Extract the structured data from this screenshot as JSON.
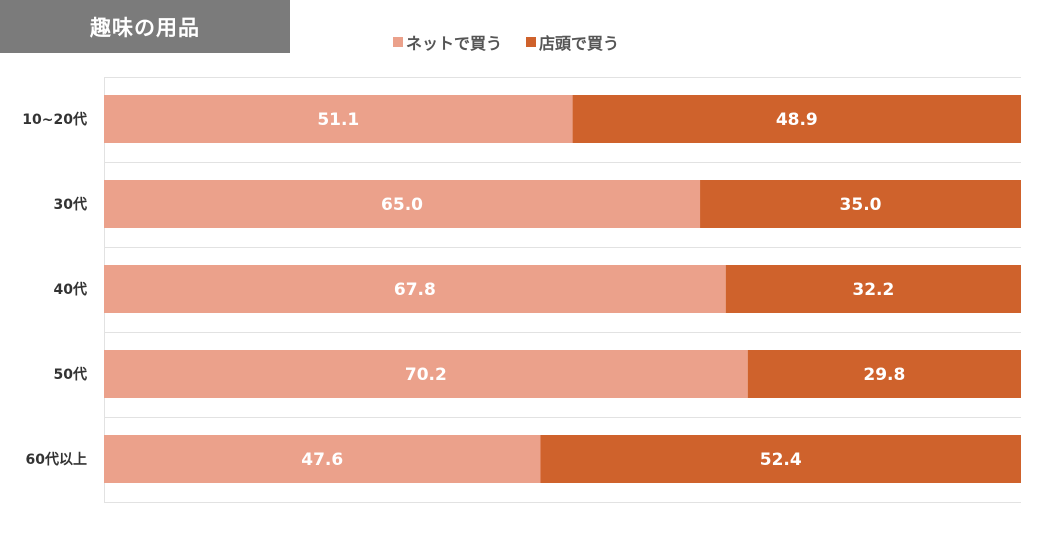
{
  "title": "趣味の用品",
  "legend": {
    "net_label": "ネットで買う",
    "store_label": "店頭で買う"
  },
  "colors": {
    "net": "#eba18b",
    "store": "#cf622c",
    "title_bg": "#7b7b7b",
    "grid": "#e2e2e2"
  },
  "chart_data": {
    "type": "bar",
    "orientation": "horizontal",
    "stacked": true,
    "categories": [
      "10~20代",
      "30代",
      "40代",
      "50代",
      "60代以上"
    ],
    "series": [
      {
        "name": "ネットで買う",
        "values": [
          51.1,
          65.0,
          67.8,
          70.2,
          47.6
        ]
      },
      {
        "name": "店頭で買う",
        "values": [
          48.9,
          35.0,
          32.2,
          29.8,
          52.4
        ]
      }
    ],
    "xlim": [
      0,
      100
    ],
    "legend_position": "top-center",
    "grid": true,
    "data_labels": true
  }
}
